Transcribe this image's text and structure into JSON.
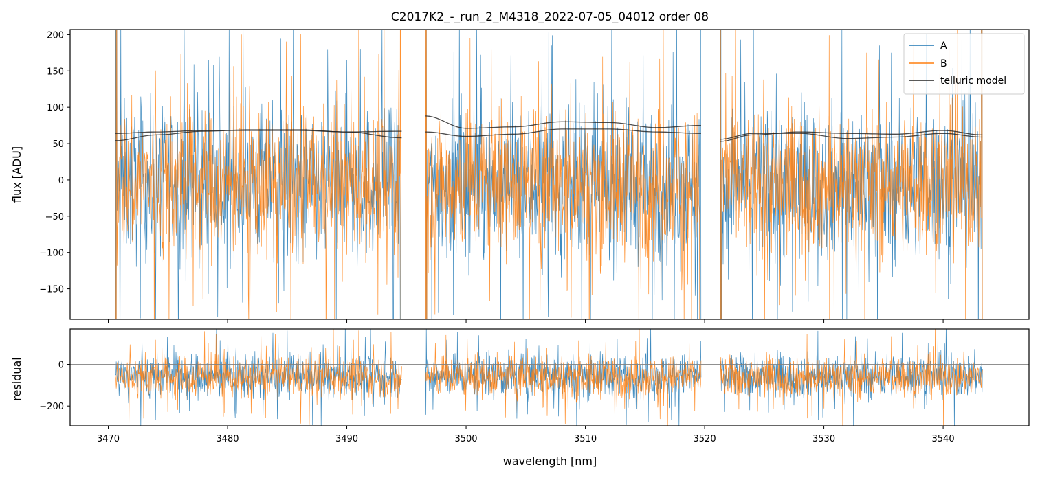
{
  "title": "C2017K2_-_run_2_M4318_2022-07-05_04012  order 08",
  "colors": {
    "A": "#1f77b4",
    "B": "#ff7f0e",
    "telluric": "#222222",
    "zero_line": "#808080"
  },
  "chart_data": [
    {
      "type": "line",
      "panel": "top",
      "title": "C2017K2_-_run_2_M4318_2022-07-05_04012  order 08",
      "xlabel": "",
      "ylabel": "flux [ADU]",
      "xlim": [
        3466.8,
        3547.2
      ],
      "ylim": [
        -192,
        207
      ],
      "yticks": [
        -150,
        -100,
        -50,
        0,
        50,
        100,
        150,
        200
      ],
      "xticks": [
        3470,
        3480,
        3490,
        3500,
        3510,
        3520,
        3530,
        3540
      ],
      "show_xticklabels": false,
      "legend": {
        "placement": "top-right",
        "entries": [
          "A",
          "B",
          "telluric model"
        ]
      },
      "segments": [
        [
          3470.6,
          3494.6
        ],
        [
          3496.6,
          3519.7
        ],
        [
          3521.3,
          3543.3
        ]
      ],
      "series": [
        {
          "name": "A",
          "noise": {
            "center": -5,
            "spread": 95,
            "segment_edge_spikes": true
          }
        },
        {
          "name": "B",
          "noise": {
            "center": -5,
            "spread": 90,
            "segment_edge_spikes": true
          }
        },
        {
          "name": "telluric model",
          "curves": [
            {
              "x": [
                3470.6,
                3474,
                3478,
                3482,
                3486,
                3490,
                3494.6
              ],
              "y": [
                54,
                62,
                67,
                69,
                69,
                66,
                58
              ]
            },
            {
              "x": [
                3470.6,
                3474,
                3478,
                3482,
                3486,
                3490,
                3494.6
              ],
              "y": [
                64,
                66,
                68,
                68,
                68,
                66,
                67
              ]
            },
            {
              "x": [
                3496.6,
                3500,
                3504,
                3508,
                3512,
                3516,
                3519.7
              ],
              "y": [
                88,
                71,
                73,
                80,
                79,
                72,
                75
              ]
            },
            {
              "x": [
                3496.6,
                3500,
                3504,
                3508,
                3512,
                3516,
                3519.7
              ],
              "y": [
                66,
                60,
                63,
                70,
                70,
                66,
                64
              ]
            },
            {
              "x": [
                3521.3,
                3524,
                3528,
                3532,
                3536,
                3540,
                3543.3
              ],
              "y": [
                53,
                62,
                66,
                64,
                63,
                68,
                62
              ]
            },
            {
              "x": [
                3521.3,
                3524,
                3528,
                3532,
                3536,
                3540,
                3543.3
              ],
              "y": [
                56,
                64,
                64,
                57,
                59,
                64,
                59
              ]
            }
          ]
        }
      ]
    },
    {
      "type": "line",
      "panel": "bottom",
      "xlabel": "wavelength [nm]",
      "ylabel": "residual",
      "xlim": [
        3466.8,
        3547.2
      ],
      "ylim": [
        -295,
        170
      ],
      "yticks": [
        -200,
        0
      ],
      "xticks": [
        3470,
        3480,
        3490,
        3500,
        3510,
        3520,
        3530,
        3540
      ],
      "zero_line": 0,
      "segments": [
        [
          3470.6,
          3494.6
        ],
        [
          3496.6,
          3519.7
        ],
        [
          3521.3,
          3543.3
        ]
      ],
      "series": [
        {
          "name": "A",
          "noise": {
            "center": -55,
            "spread": 95
          }
        },
        {
          "name": "B",
          "noise": {
            "center": -60,
            "spread": 90
          }
        }
      ]
    }
  ]
}
